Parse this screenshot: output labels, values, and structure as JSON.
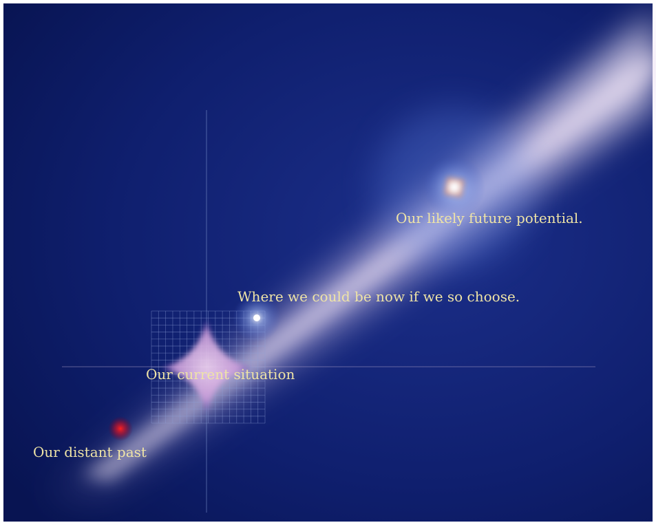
{
  "labels": [
    "Our likely future potential.",
    "Where we could be now if we so choose.",
    "Our current situation",
    "Our distant past"
  ]
}
